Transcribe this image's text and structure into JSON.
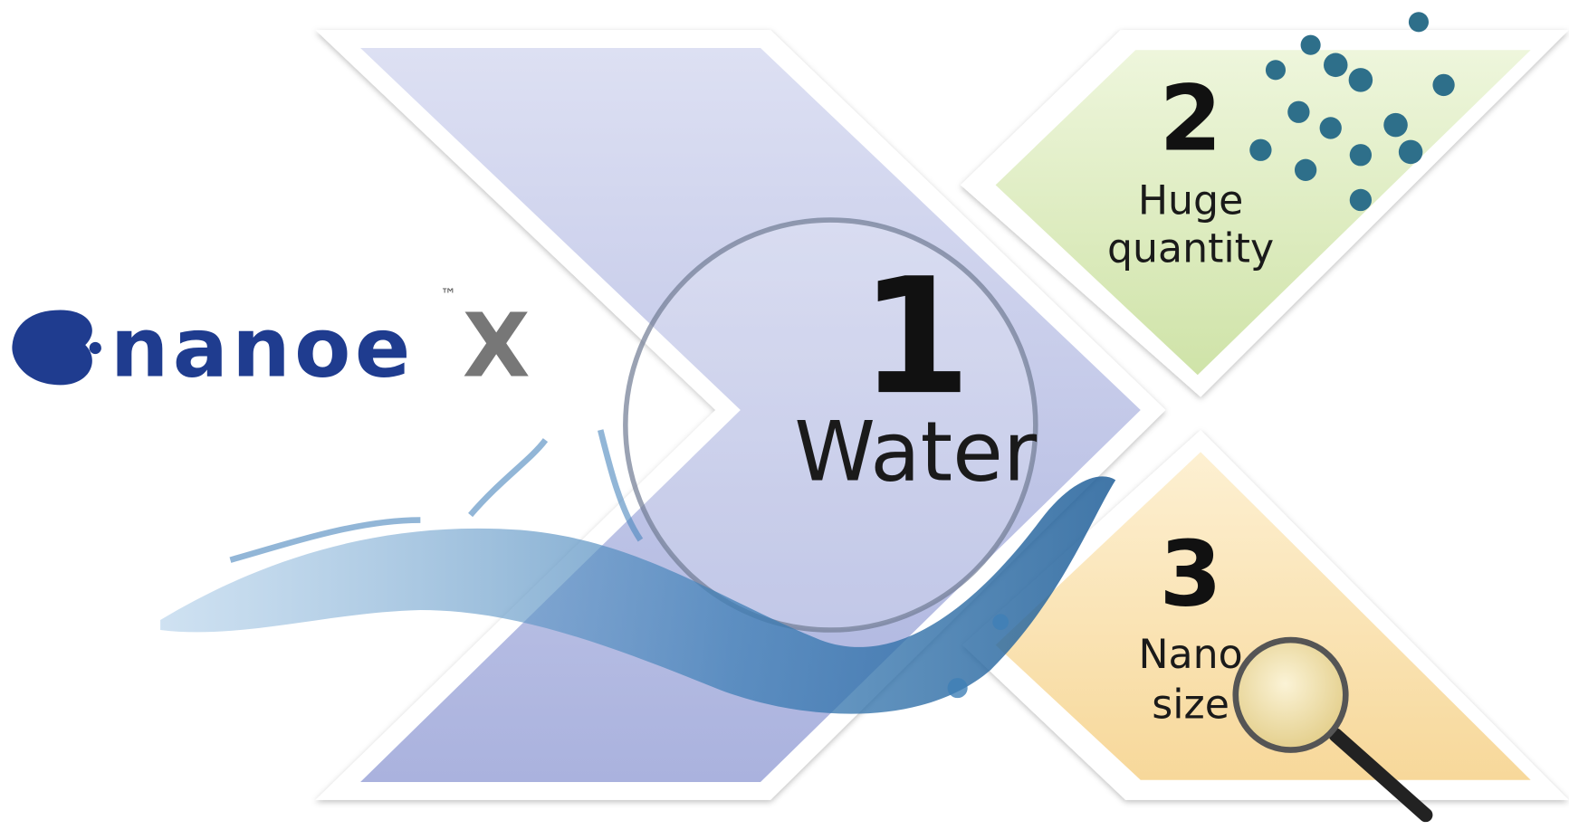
{
  "logo": {
    "text": "nanoe",
    "mark": "X",
    "trademark": "™"
  },
  "items": [
    {
      "number": "1",
      "label_lines": [
        "Water"
      ]
    },
    {
      "number": "2",
      "label_lines": [
        "Huge",
        "quantity"
      ]
    },
    {
      "number": "3",
      "label_lines": [
        "Nano",
        "size"
      ]
    }
  ]
}
